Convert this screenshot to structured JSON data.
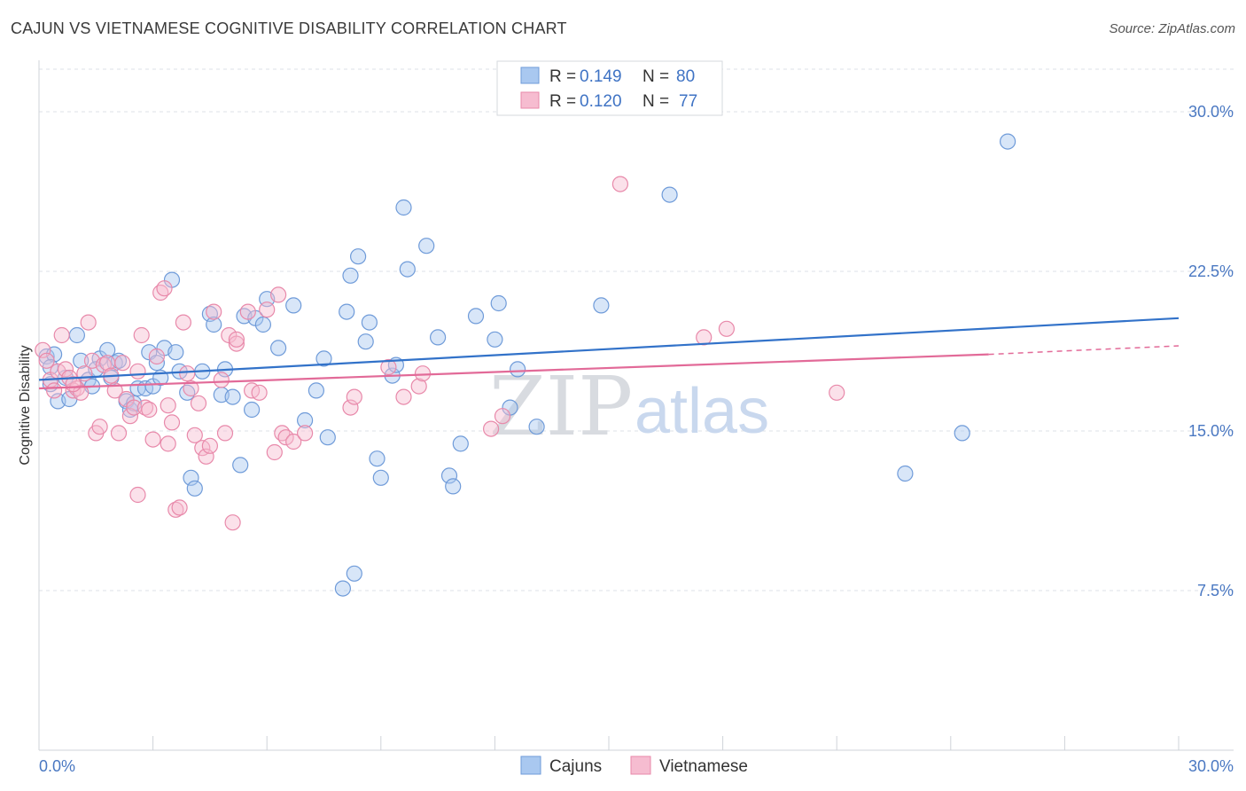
{
  "header": {
    "title": "CAJUN VS VIETNAMESE COGNITIVE DISABILITY CORRELATION CHART",
    "source": "Source: ZipAtlas.com"
  },
  "watermark": {
    "zip": "ZIP",
    "atlas": "atlas"
  },
  "legend_top": [
    {
      "r_label": "R = ",
      "r_value": "0.149",
      "n_label": "N = ",
      "n_value": "80"
    },
    {
      "r_label": "R = ",
      "r_value": "0.120",
      "n_label": "N = ",
      "n_value": "77"
    }
  ],
  "legend_bottom": [
    "Cajuns",
    "Vietnamese"
  ],
  "colors": {
    "cajun_fill": "#a9c8f0",
    "cajun_stroke": "#6f9bd9",
    "cajun_line": "#3272c9",
    "viet_fill": "#f6bcd0",
    "viet_stroke": "#e889aa",
    "viet_line": "#e26a98",
    "grid": "#dde1e7",
    "tick_text": "#4a78c2"
  },
  "chart_data": {
    "type": "scatter",
    "title": "CAJUN VS VIETNAMESE COGNITIVE DISABILITY CORRELATION CHART",
    "xlabel": "",
    "ylabel": "Cognitive Disability",
    "xlim": [
      0,
      30
    ],
    "ylim": [
      0,
      32
    ],
    "x_tick_labels": [
      "0.0%",
      "30.0%"
    ],
    "y_ticks": [
      7.5,
      15.0,
      22.5,
      30.0
    ],
    "y_tick_labels": [
      "7.5%",
      "15.0%",
      "22.5%",
      "30.0%"
    ],
    "grid": "horizontal dashed",
    "legend": "top-center",
    "series": [
      {
        "name": "Cajuns",
        "r": 0.149,
        "n": 80,
        "trend": {
          "x": [
            0,
            30
          ],
          "y": [
            17.4,
            20.3
          ]
        },
        "points": [
          [
            0.2,
            18.5
          ],
          [
            0.3,
            17.2
          ],
          [
            0.4,
            18.6
          ],
          [
            0.5,
            16.4
          ],
          [
            0.7,
            17.5
          ],
          [
            0.8,
            16.5
          ],
          [
            1.0,
            19.5
          ],
          [
            1.1,
            18.3
          ],
          [
            1.3,
            17.4
          ],
          [
            1.4,
            17.1
          ],
          [
            1.6,
            18.4
          ],
          [
            1.8,
            18.8
          ],
          [
            1.9,
            17.5
          ],
          [
            2.0,
            18.2
          ],
          [
            2.1,
            18.3
          ],
          [
            2.3,
            16.4
          ],
          [
            2.4,
            16.0
          ],
          [
            2.5,
            16.3
          ],
          [
            2.6,
            17.0
          ],
          [
            2.8,
            17.0
          ],
          [
            2.9,
            18.7
          ],
          [
            3.0,
            17.1
          ],
          [
            3.1,
            18.2
          ],
          [
            3.2,
            17.5
          ],
          [
            3.3,
            18.9
          ],
          [
            3.5,
            22.1
          ],
          [
            3.6,
            18.7
          ],
          [
            3.7,
            17.8
          ],
          [
            3.9,
            16.8
          ],
          [
            4.0,
            12.8
          ],
          [
            4.1,
            12.3
          ],
          [
            4.3,
            17.8
          ],
          [
            4.5,
            20.5
          ],
          [
            4.6,
            20.0
          ],
          [
            4.8,
            16.7
          ],
          [
            4.9,
            17.9
          ],
          [
            5.1,
            16.6
          ],
          [
            5.3,
            13.4
          ],
          [
            5.4,
            20.4
          ],
          [
            5.6,
            16.0
          ],
          [
            5.7,
            20.3
          ],
          [
            5.9,
            20.0
          ],
          [
            6.0,
            21.2
          ],
          [
            6.3,
            18.9
          ],
          [
            6.7,
            20.9
          ],
          [
            7.0,
            15.5
          ],
          [
            7.3,
            16.9
          ],
          [
            7.5,
            18.4
          ],
          [
            7.6,
            14.7
          ],
          [
            8.0,
            7.6
          ],
          [
            8.1,
            20.6
          ],
          [
            8.2,
            22.3
          ],
          [
            8.3,
            8.3
          ],
          [
            8.4,
            23.2
          ],
          [
            8.6,
            19.2
          ],
          [
            8.7,
            20.1
          ],
          [
            8.9,
            13.7
          ],
          [
            9.0,
            12.8
          ],
          [
            9.3,
            17.6
          ],
          [
            9.4,
            18.1
          ],
          [
            9.6,
            25.5
          ],
          [
            9.7,
            22.6
          ],
          [
            10.2,
            23.7
          ],
          [
            10.5,
            19.4
          ],
          [
            10.8,
            12.9
          ],
          [
            10.9,
            12.4
          ],
          [
            11.1,
            14.4
          ],
          [
            11.5,
            20.4
          ],
          [
            12.0,
            19.3
          ],
          [
            12.1,
            21.0
          ],
          [
            12.4,
            16.1
          ],
          [
            12.6,
            17.9
          ],
          [
            13.1,
            15.2
          ],
          [
            14.8,
            20.9
          ],
          [
            16.6,
            26.1
          ],
          [
            22.8,
            13.0
          ],
          [
            24.3,
            14.9
          ],
          [
            25.5,
            28.6
          ],
          [
            0.3,
            18.0
          ],
          [
            1.5,
            17.9
          ]
        ]
      },
      {
        "name": "Vietnamese",
        "r": 0.12,
        "n": 77,
        "trend": {
          "x": [
            0,
            25
          ],
          "y": [
            17.0,
            18.6
          ]
        },
        "trend_extension": {
          "x": [
            25,
            30
          ],
          "y": [
            18.6,
            19.0
          ]
        },
        "points": [
          [
            0.1,
            18.8
          ],
          [
            0.3,
            17.4
          ],
          [
            0.4,
            16.9
          ],
          [
            0.5,
            17.8
          ],
          [
            0.6,
            19.5
          ],
          [
            0.7,
            17.9
          ],
          [
            0.8,
            17.5
          ],
          [
            0.9,
            16.9
          ],
          [
            1.0,
            17.0
          ],
          [
            1.1,
            16.8
          ],
          [
            1.2,
            17.7
          ],
          [
            1.3,
            20.1
          ],
          [
            1.4,
            18.3
          ],
          [
            1.5,
            14.9
          ],
          [
            1.6,
            15.2
          ],
          [
            1.7,
            18.1
          ],
          [
            1.8,
            18.2
          ],
          [
            1.9,
            17.6
          ],
          [
            2.0,
            16.9
          ],
          [
            2.1,
            14.9
          ],
          [
            2.2,
            18.2
          ],
          [
            2.3,
            16.5
          ],
          [
            2.4,
            15.7
          ],
          [
            2.5,
            16.1
          ],
          [
            2.6,
            12.0
          ],
          [
            2.7,
            19.5
          ],
          [
            2.8,
            16.1
          ],
          [
            2.9,
            16.0
          ],
          [
            3.0,
            14.6
          ],
          [
            3.1,
            18.5
          ],
          [
            3.2,
            21.5
          ],
          [
            3.3,
            21.7
          ],
          [
            3.4,
            14.4
          ],
          [
            3.5,
            15.4
          ],
          [
            3.6,
            11.3
          ],
          [
            3.7,
            11.4
          ],
          [
            3.8,
            20.1
          ],
          [
            3.9,
            17.7
          ],
          [
            4.0,
            17.0
          ],
          [
            4.1,
            14.8
          ],
          [
            4.2,
            16.3
          ],
          [
            4.3,
            14.2
          ],
          [
            4.4,
            13.8
          ],
          [
            4.5,
            14.3
          ],
          [
            4.6,
            20.6
          ],
          [
            4.8,
            17.4
          ],
          [
            4.9,
            14.9
          ],
          [
            5.0,
            19.5
          ],
          [
            5.1,
            10.7
          ],
          [
            5.2,
            19.1
          ],
          [
            5.5,
            20.6
          ],
          [
            5.6,
            16.9
          ],
          [
            5.8,
            16.8
          ],
          [
            6.0,
            20.7
          ],
          [
            6.2,
            14.0
          ],
          [
            6.3,
            21.4
          ],
          [
            6.4,
            14.9
          ],
          [
            6.5,
            14.7
          ],
          [
            6.7,
            14.5
          ],
          [
            7.0,
            14.9
          ],
          [
            8.2,
            16.1
          ],
          [
            8.3,
            16.6
          ],
          [
            9.2,
            18.0
          ],
          [
            9.6,
            16.6
          ],
          [
            10.0,
            17.1
          ],
          [
            10.1,
            17.7
          ],
          [
            11.9,
            15.1
          ],
          [
            12.2,
            15.7
          ],
          [
            15.3,
            26.6
          ],
          [
            17.5,
            19.4
          ],
          [
            18.1,
            19.8
          ],
          [
            21.0,
            16.8
          ],
          [
            0.2,
            18.3
          ],
          [
            0.9,
            17.2
          ],
          [
            2.6,
            17.8
          ],
          [
            5.2,
            19.3
          ],
          [
            3.4,
            16.2
          ]
        ]
      }
    ]
  }
}
